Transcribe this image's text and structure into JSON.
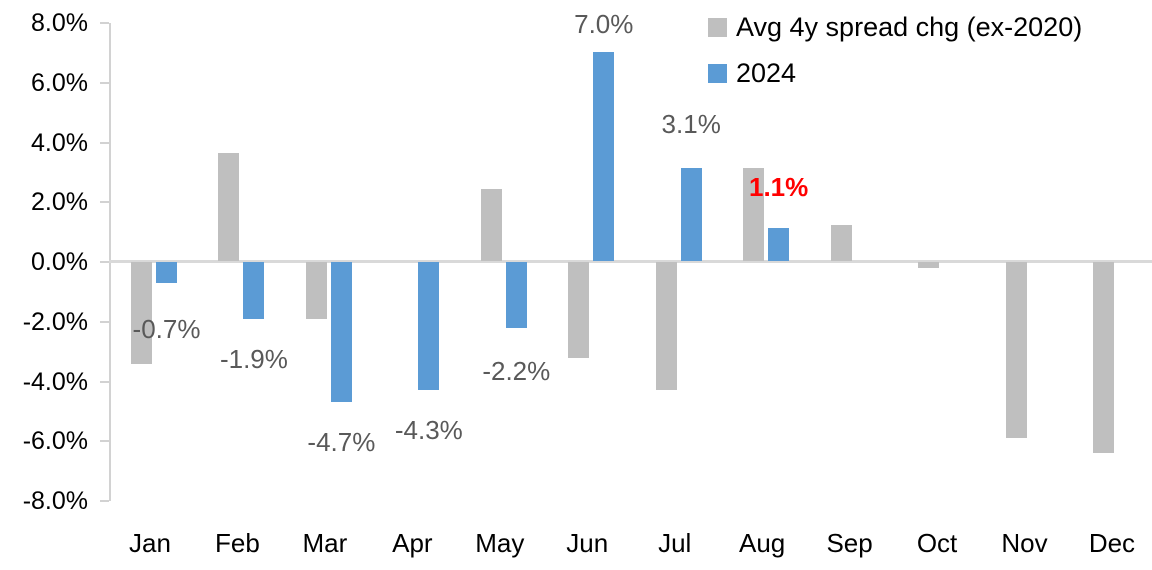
{
  "chart_data": {
    "type": "bar",
    "title": "",
    "xlabel": "",
    "ylabel": "",
    "unit": "%",
    "categories": [
      "Jan",
      "Feb",
      "Mar",
      "Apr",
      "May",
      "Jun",
      "Jul",
      "Aug",
      "Sep",
      "Oct",
      "Nov",
      "Dec"
    ],
    "series": [
      {
        "name": "Avg 4y spread chg (ex-2020)",
        "color": "#bfbfbf",
        "values": [
          -3.4,
          3.6,
          -1.9,
          0.0,
          2.4,
          -3.2,
          -4.3,
          3.1,
          1.2,
          -0.2,
          -5.9,
          -6.4
        ]
      },
      {
        "name": "2024",
        "color": "#5b9bd5",
        "values": [
          -0.7,
          -1.9,
          -4.7,
          -4.3,
          -2.2,
          7.0,
          3.1,
          1.1,
          null,
          null,
          null,
          null
        ]
      }
    ],
    "data_labels": [
      {
        "series": "2024",
        "category": "Jan",
        "text": "-0.7%",
        "color": "#595959",
        "bold": false
      },
      {
        "series": "2024",
        "category": "Feb",
        "text": "-1.9%",
        "color": "#595959",
        "bold": false
      },
      {
        "series": "2024",
        "category": "Mar",
        "text": "-4.7%",
        "color": "#595959",
        "bold": false
      },
      {
        "series": "2024",
        "category": "Apr",
        "text": "-4.3%",
        "color": "#595959",
        "bold": false
      },
      {
        "series": "2024",
        "category": "May",
        "text": "-2.2%",
        "color": "#595959",
        "bold": false
      },
      {
        "series": "2024",
        "category": "Jun",
        "text": "7.0%",
        "color": "#595959",
        "bold": false
      },
      {
        "series": "2024",
        "category": "Jul",
        "text": "3.1%",
        "color": "#595959",
        "bold": false
      },
      {
        "series": "2024",
        "category": "Aug",
        "text": "1.1%",
        "color": "#ff0000",
        "bold": true
      }
    ],
    "ylim": [
      -8,
      8
    ],
    "ytick_labels": [
      "8.0%",
      "6.0%",
      "4.0%",
      "2.0%",
      "0.0%",
      "-2.0%",
      "-4.0%",
      "-6.0%",
      "-8.0%"
    ],
    "grid": "zero-line-only",
    "legend_position": "top-right",
    "axis_color": "#d9d9d9",
    "data_label_color": "#595959",
    "emphasis_color": "#ff0000"
  }
}
